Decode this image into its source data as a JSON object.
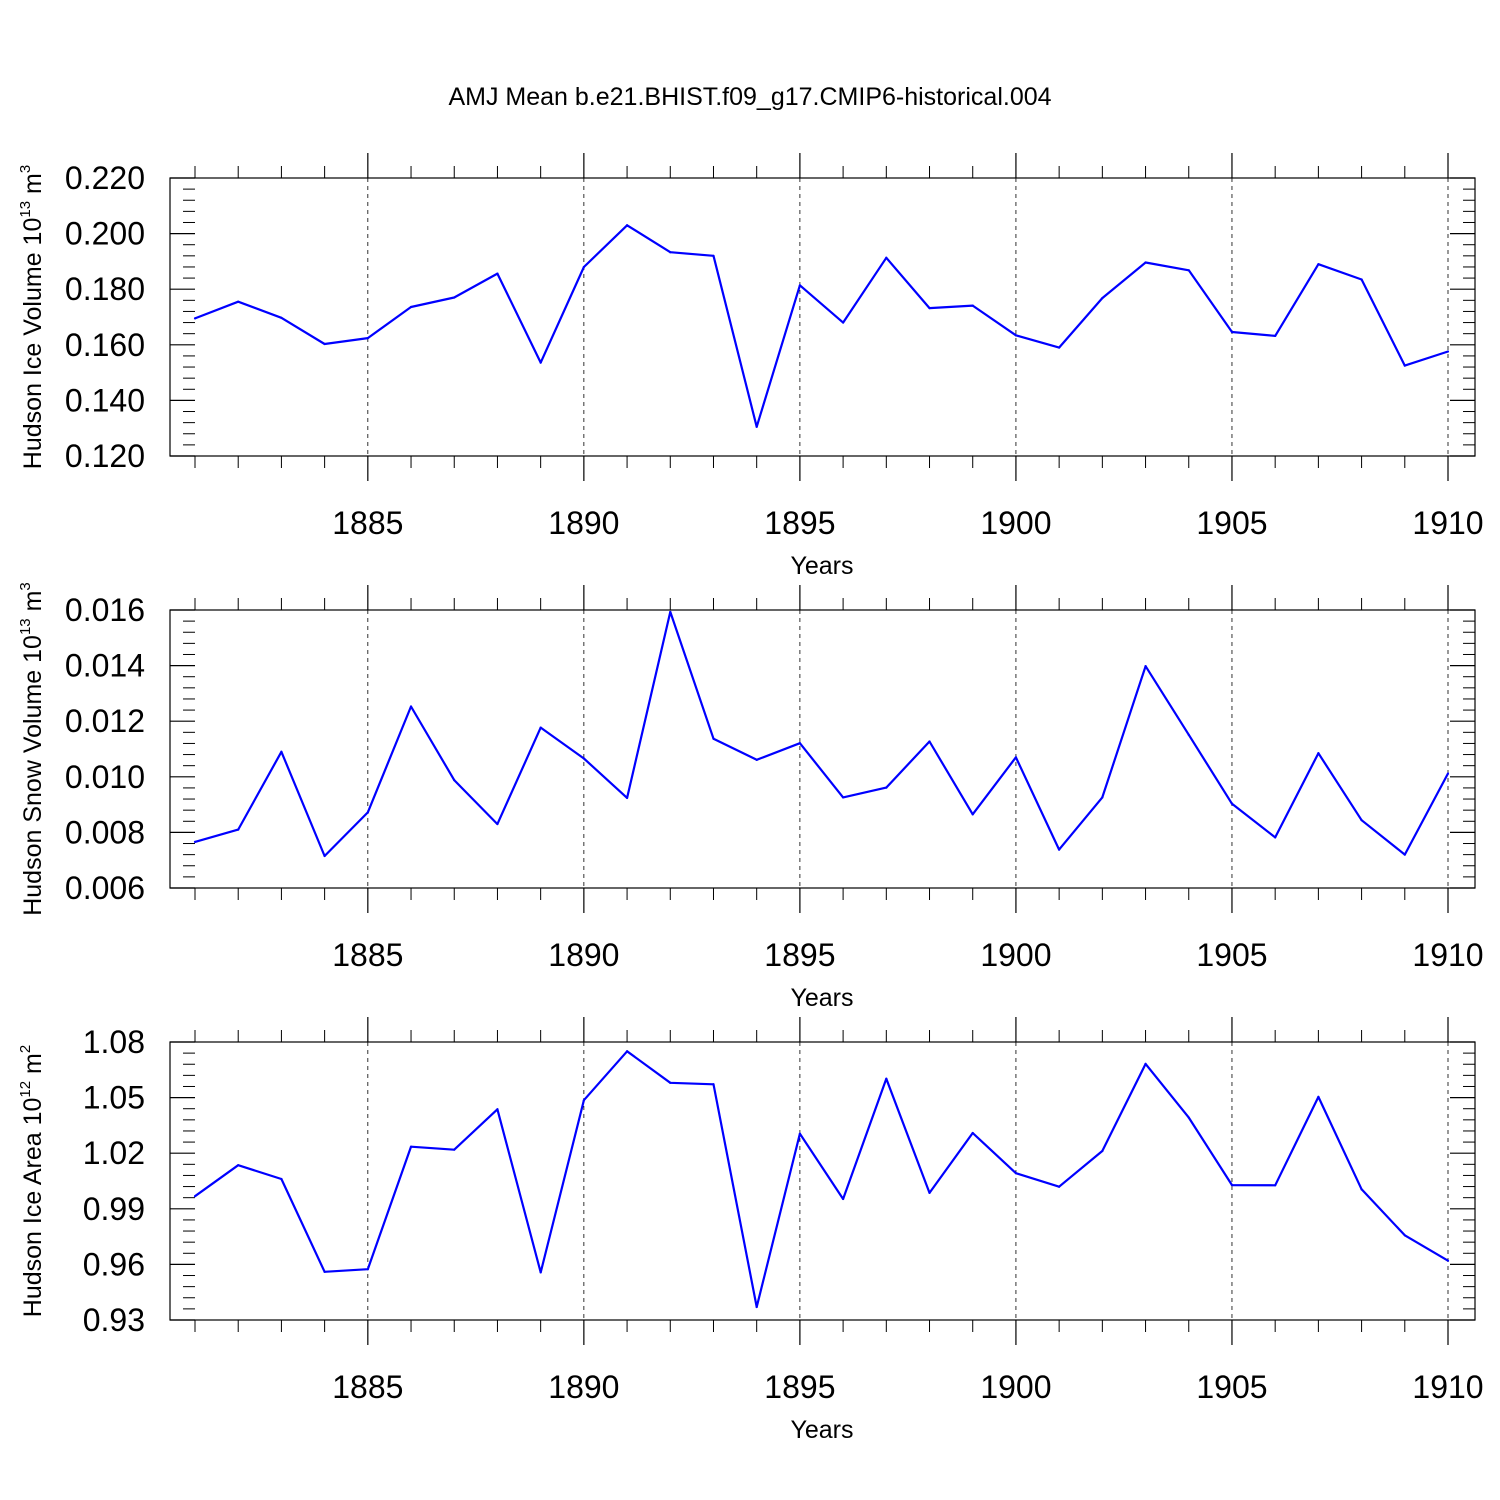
{
  "title": "AMJ Mean b.e21.BHIST.f09_g17.CMIP6-historical.004",
  "chart_data": [
    {
      "type": "line",
      "id": "ice-volume",
      "ylabel": {
        "text": "Hudson Ice Volume 10",
        "exp": "13",
        "unit": " m",
        "unit_exp": "3"
      },
      "xlabel": "Years",
      "xlim": [
        1881,
        1910
      ],
      "ylim": [
        0.12,
        0.22
      ],
      "yticks": [
        "0.120",
        "0.140",
        "0.160",
        "0.180",
        "0.200",
        "0.220"
      ],
      "xticks": [
        "1885",
        "1890",
        "1895",
        "1900",
        "1905",
        "1910"
      ],
      "grid": "dashed vertical at major x ticks",
      "series_color": "#0000ff",
      "x": [
        1881,
        1882,
        1883,
        1884,
        1885,
        1886,
        1887,
        1888,
        1889,
        1890,
        1891,
        1892,
        1893,
        1894,
        1895,
        1896,
        1897,
        1898,
        1899,
        1900,
        1901,
        1902,
        1903,
        1904,
        1905,
        1906,
        1907,
        1908,
        1909,
        1910
      ],
      "values": [
        0.1695,
        0.1755,
        0.1697,
        0.1603,
        0.1624,
        0.1736,
        0.177,
        0.1856,
        0.1536,
        0.188,
        0.203,
        0.1933,
        0.192,
        0.1305,
        0.1814,
        0.168,
        0.1913,
        0.1732,
        0.1741,
        0.1634,
        0.159,
        0.1768,
        0.1896,
        0.1868,
        0.1646,
        0.1632,
        0.189,
        0.1835,
        0.1525,
        0.1576
      ]
    },
    {
      "type": "line",
      "id": "snow-volume",
      "ylabel": {
        "text": "Hudson Snow Volume 10",
        "exp": "13",
        "unit": " m",
        "unit_exp": "3"
      },
      "xlabel": "Years",
      "xlim": [
        1881,
        1910
      ],
      "ylim": [
        0.006,
        0.016
      ],
      "yticks": [
        "0.006",
        "0.008",
        "0.010",
        "0.012",
        "0.014",
        "0.016"
      ],
      "xticks": [
        "1885",
        "1890",
        "1895",
        "1900",
        "1905",
        "1910"
      ],
      "grid": "dashed vertical at major x ticks",
      "series_color": "#0000ff",
      "x": [
        1881,
        1882,
        1883,
        1884,
        1885,
        1886,
        1887,
        1888,
        1889,
        1890,
        1891,
        1892,
        1893,
        1894,
        1895,
        1896,
        1897,
        1898,
        1899,
        1900,
        1901,
        1902,
        1903,
        1904,
        1905,
        1906,
        1907,
        1908,
        1909,
        1910
      ],
      "values": [
        0.00766,
        0.0081,
        0.0109,
        0.00715,
        0.00872,
        0.01253,
        0.00988,
        0.0083,
        0.01177,
        0.01066,
        0.00924,
        0.01593,
        0.01137,
        0.01061,
        0.01121,
        0.00926,
        0.00961,
        0.01127,
        0.00865,
        0.0107,
        0.00738,
        0.00926,
        0.01398,
        0.01151,
        0.00903,
        0.00782,
        0.01085,
        0.00844,
        0.0072,
        0.01012
      ]
    },
    {
      "type": "line",
      "id": "ice-area",
      "ylabel": {
        "text": "Hudson Ice Area 10",
        "exp": "12",
        "unit": " m",
        "unit_exp": "2"
      },
      "xlabel": "Years",
      "xlim": [
        1881,
        1910
      ],
      "ylim": [
        0.93,
        1.08
      ],
      "yticks": [
        "0.93",
        "0.96",
        "0.99",
        "1.02",
        "1.05",
        "1.08"
      ],
      "xticks": [
        "1885",
        "1890",
        "1895",
        "1900",
        "1905",
        "1910"
      ],
      "grid": "dashed vertical at major x ticks",
      "series_color": "#0000ff",
      "x": [
        1881,
        1882,
        1883,
        1884,
        1885,
        1886,
        1887,
        1888,
        1889,
        1890,
        1891,
        1892,
        1893,
        1894,
        1895,
        1896,
        1897,
        1898,
        1899,
        1900,
        1901,
        1902,
        1903,
        1904,
        1905,
        1906,
        1907,
        1908,
        1909,
        1910
      ],
      "values": [
        0.9968,
        1.0135,
        1.0061,
        0.956,
        0.9574,
        1.0235,
        1.0219,
        1.0437,
        0.9557,
        1.0486,
        1.075,
        1.058,
        1.0572,
        0.937,
        1.0305,
        0.9953,
        1.0602,
        0.9986,
        1.0309,
        1.0092,
        1.0019,
        1.0212,
        1.0682,
        1.0392,
        1.0028,
        1.0027,
        1.0504,
        1.0005,
        0.9757,
        0.962
      ]
    }
  ]
}
